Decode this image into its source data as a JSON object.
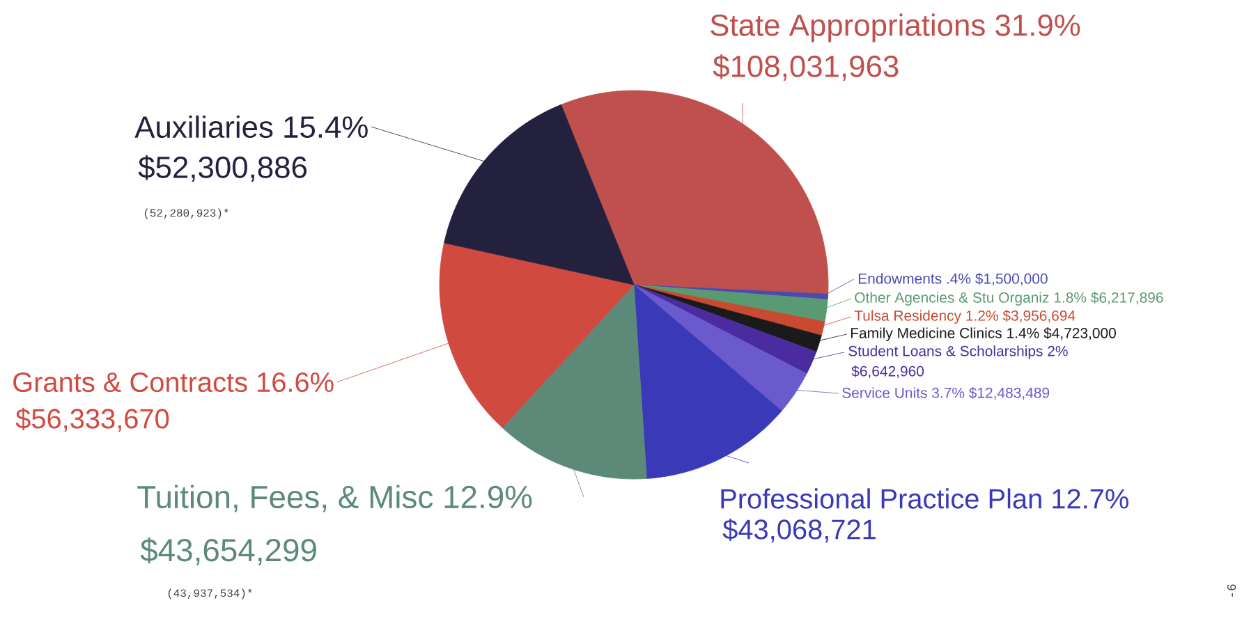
{
  "chart_data": {
    "type": "pie",
    "categories": [
      "State Appropriations 31.9%",
      "Endowments .4%",
      "Other Agencies & Stu Organiz 1.8%",
      "Tulsa Residency 1.2%",
      "Family Medicine Clinics 1.4%",
      "Student Loans & Scholarships 2%",
      "Service Units 3.7%",
      "Professional Practice Plan 12.7%",
      "Tuition, Fees, & Misc 12.9%",
      "Grants & Contracts 16.6%",
      "Auxiliaries 15.4%"
    ],
    "values": [
      108031963,
      1500000,
      6217896,
      3956694,
      4723000,
      6642960,
      12483489,
      43068721,
      43654299,
      56333670,
      52300886
    ],
    "value_labels": [
      "$108,031,963",
      "$1,500,000",
      "$6,217,896",
      "$3,956,694",
      "$4,723,000",
      "$6,642,960",
      "$12,483,489",
      "$43,068,721",
      "$43,654,299",
      "$56,333,670",
      "$52,300,886"
    ],
    "colors": [
      "#c0504d",
      "#4a4ab0",
      "#5a9a72",
      "#c84a30",
      "#1a1a1a",
      "#4b2ca0",
      "#6a5acd",
      "#3a3ab8",
      "#5d8a78",
      "#d04a40",
      "#24213f"
    ],
    "annotations": [
      "(52,280,923)*",
      "(43,937,534)*",
      "-6"
    ]
  }
}
